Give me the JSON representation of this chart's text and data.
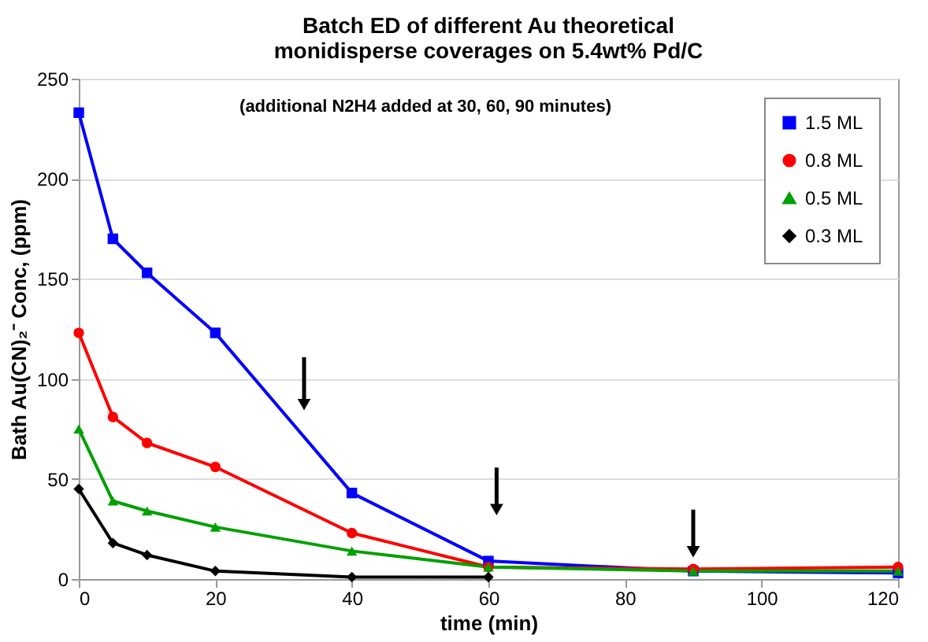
{
  "chart_data": {
    "type": "line",
    "title": "Batch ED of different Au theoretical monidisperse coverages on 5.4wt% Pd/C",
    "xlabel": "time (min)",
    "ylabel": "Bath Au(CN)₂⁻ Conc, (ppm)",
    "annotations": [
      "(additional N2H4 added at 30, 60, 90 minutes)"
    ],
    "xlim": [
      0,
      120
    ],
    "xticks": [
      0,
      20,
      40,
      60,
      80,
      100,
      120
    ],
    "ylim": [
      0,
      250
    ],
    "yticks": [
      0,
      50,
      100,
      150,
      200,
      250
    ],
    "grid": "y",
    "legend": "top right",
    "series": [
      {
        "name": "1.5 ML",
        "color": "#0000ff",
        "marker": "square",
        "x": [
          0,
          5,
          10,
          20,
          40,
          60,
          90,
          120
        ],
        "values": [
          233,
          170,
          153,
          123,
          43,
          9,
          4,
          3
        ]
      },
      {
        "name": "0.8 ML",
        "color": "#ff0000",
        "marker": "circle",
        "x": [
          0,
          5,
          10,
          20,
          40,
          60,
          90,
          120
        ],
        "values": [
          123,
          81,
          68,
          56,
          23,
          6,
          5,
          6
        ]
      },
      {
        "name": "0.5 ML",
        "color": "#00a000",
        "marker": "triangle",
        "x": [
          0,
          5,
          10,
          20,
          40,
          60,
          90,
          120
        ],
        "values": [
          75,
          39,
          34,
          26,
          14,
          6,
          4,
          4
        ]
      },
      {
        "name": "0.3 ML",
        "color": "#000000",
        "marker": "diamond",
        "x": [
          0,
          5,
          10,
          20,
          40,
          60
        ],
        "values": [
          45,
          18,
          12,
          4,
          1,
          1
        ]
      }
    ]
  }
}
